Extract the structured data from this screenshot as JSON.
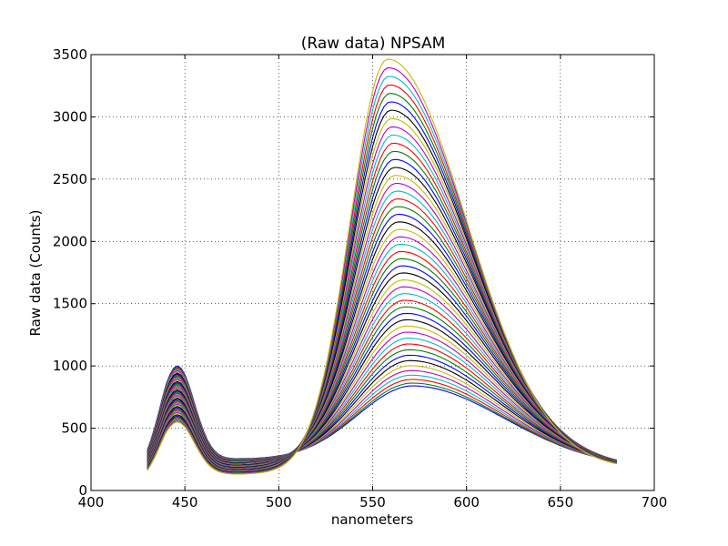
{
  "chart_data": {
    "type": "line",
    "title": "(Raw data) NPSAM",
    "xlabel": "nanometers",
    "ylabel": "Raw data (Counts)",
    "xlim": [
      400,
      700
    ],
    "ylim": [
      0,
      3500
    ],
    "xticks": [
      "400",
      "450",
      "500",
      "550",
      "600",
      "650",
      "700"
    ],
    "yticks": [
      "0",
      "500",
      "1000",
      "1500",
      "2000",
      "2500",
      "3000",
      "3500"
    ],
    "grid": true,
    "x_range": [
      430,
      680
    ],
    "series_count": 48,
    "colors": [
      "#0000ff",
      "#008000",
      "#ff0000",
      "#00bfbf",
      "#bf00bf",
      "#bfbf00",
      "#000000"
    ],
    "series_model": {
      "description_free": true,
      "left_peak_x": 446,
      "left_peak_y_range": [
        550,
        1000
      ],
      "right_peak_x_range": [
        558,
        572
      ],
      "right_peak_y_range": [
        870,
        3450
      ],
      "valley_y_range": [
        130,
        250
      ],
      "end_y_range": [
        120,
        200
      ]
    }
  }
}
